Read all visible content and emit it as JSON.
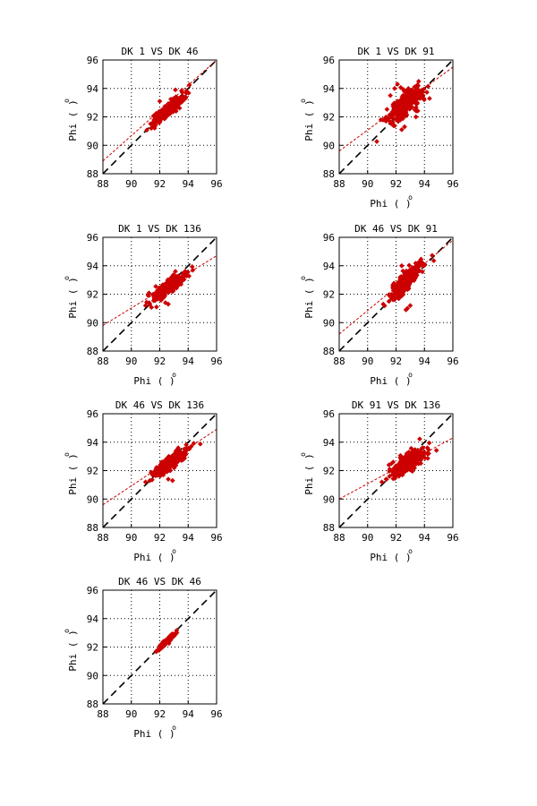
{
  "chart_data": [
    {
      "type": "scatter",
      "title": "DK  1 VS DK 46",
      "xlabel": "Phi ( )",
      "ylabel": "Phi ( )",
      "unit_superscript": "o",
      "show_xlabel": false,
      "xlim": [
        88,
        96
      ],
      "ylim": [
        88,
        96
      ],
      "xticks": [
        88,
        90,
        92,
        94,
        96
      ],
      "yticks": [
        88,
        90,
        92,
        94,
        96
      ],
      "grid": true,
      "identity_line": {
        "style": "black-dashed"
      },
      "fit_line": {
        "style": "red-dashed",
        "points": [
          [
            88,
            88.9
          ],
          [
            96,
            96.0
          ]
        ]
      },
      "cluster": {
        "center": [
          92.6,
          92.5
        ],
        "spread": [
          0.55,
          0.5
        ],
        "corr": 0.9,
        "n": 260,
        "color": "#cc0000"
      },
      "outliers": [
        [
          91.4,
          91.2
        ],
        [
          91.7,
          91.4
        ],
        [
          93.8,
          93.4
        ],
        [
          92.0,
          93.1
        ],
        [
          93.1,
          93.9
        ]
      ]
    },
    {
      "type": "scatter",
      "title": "DK  1 VS DK 91",
      "xlabel": "Phi ( )",
      "ylabel": "Phi ( )",
      "unit_superscript": "o",
      "show_xlabel": true,
      "xlim": [
        88,
        96
      ],
      "ylim": [
        88,
        96
      ],
      "xticks": [
        88,
        90,
        92,
        94,
        96
      ],
      "yticks": [
        88,
        90,
        92,
        94,
        96
      ],
      "grid": true,
      "identity_line": {
        "style": "black-dashed"
      },
      "fit_line": {
        "style": "red-dashed",
        "points": [
          [
            88,
            89.6
          ],
          [
            96,
            95.5
          ]
        ]
      },
      "cluster": {
        "center": [
          92.6,
          92.8
        ],
        "spread": [
          0.6,
          0.6
        ],
        "corr": 0.75,
        "n": 300,
        "color": "#cc0000"
      },
      "outliers": [
        [
          91.3,
          91.7
        ],
        [
          91.6,
          93.5
        ],
        [
          92.4,
          91.1
        ],
        [
          92.6,
          91.3
        ],
        [
          93.4,
          92.0
        ],
        [
          92.1,
          94.3
        ],
        [
          93.3,
          94.1
        ],
        [
          91.9,
          94.0
        ]
      ]
    },
    {
      "type": "scatter",
      "title": "DK  1 VS DK 136",
      "xlabel": "Phi ( )",
      "ylabel": "Phi ( )",
      "unit_superscript": "o",
      "show_xlabel": true,
      "xlim": [
        88,
        96
      ],
      "ylim": [
        88,
        96
      ],
      "xticks": [
        88,
        90,
        92,
        94,
        96
      ],
      "yticks": [
        88,
        90,
        92,
        94,
        96
      ],
      "grid": true,
      "identity_line": {
        "style": "black-dashed"
      },
      "fit_line": {
        "style": "red-dashed",
        "points": [
          [
            88,
            89.8
          ],
          [
            96,
            94.7
          ]
        ]
      },
      "cluster": {
        "center": [
          92.6,
          92.5
        ],
        "spread": [
          0.55,
          0.45
        ],
        "corr": 0.85,
        "n": 280,
        "color": "#cc0000"
      },
      "outliers": [
        [
          91.0,
          91.2
        ],
        [
          91.3,
          91.3
        ],
        [
          92.4,
          91.4
        ],
        [
          92.6,
          91.3
        ],
        [
          93.8,
          93.6
        ],
        [
          93.1,
          93.6
        ]
      ]
    },
    {
      "type": "scatter",
      "title": "DK 46 VS DK 91",
      "xlabel": "Phi ( )",
      "ylabel": "Phi ( )",
      "unit_superscript": "o",
      "show_xlabel": true,
      "xlim": [
        88,
        96
      ],
      "ylim": [
        88,
        96
      ],
      "xticks": [
        88,
        90,
        92,
        94,
        96
      ],
      "yticks": [
        88,
        90,
        92,
        94,
        96
      ],
      "grid": true,
      "identity_line": {
        "style": "black-dashed"
      },
      "fit_line": {
        "style": "red-dashed",
        "points": [
          [
            88,
            89.2
          ],
          [
            96,
            95.8
          ]
        ]
      },
      "cluster": {
        "center": [
          92.7,
          92.9
        ],
        "spread": [
          0.55,
          0.6
        ],
        "corr": 0.85,
        "n": 300,
        "color": "#cc0000"
      },
      "outliers": [
        [
          91.1,
          91.3
        ],
        [
          91.5,
          91.5
        ],
        [
          92.7,
          90.9
        ],
        [
          93.0,
          91.2
        ],
        [
          92.8,
          91.0
        ],
        [
          93.6,
          94.0
        ],
        [
          92.4,
          94.0
        ]
      ]
    },
    {
      "type": "scatter",
      "title": "DK 46 VS DK 136",
      "xlabel": "Phi ( )",
      "ylabel": "Phi ( )",
      "unit_superscript": "o",
      "show_xlabel": true,
      "xlim": [
        88,
        96
      ],
      "ylim": [
        88,
        96
      ],
      "xticks": [
        88,
        90,
        92,
        94,
        96
      ],
      "yticks": [
        88,
        90,
        92,
        94,
        96
      ],
      "grid": true,
      "identity_line": {
        "style": "black-dashed"
      },
      "fit_line": {
        "style": "red-dashed",
        "points": [
          [
            88,
            89.6
          ],
          [
            96,
            94.9
          ]
        ]
      },
      "cluster": {
        "center": [
          92.7,
          92.5
        ],
        "spread": [
          0.55,
          0.45
        ],
        "corr": 0.85,
        "n": 280,
        "color": "#cc0000"
      },
      "outliers": [
        [
          91.0,
          91.2
        ],
        [
          91.3,
          91.3
        ],
        [
          92.6,
          91.4
        ],
        [
          92.9,
          91.3
        ],
        [
          93.8,
          93.5
        ],
        [
          93.3,
          93.6
        ]
      ]
    },
    {
      "type": "scatter",
      "title": "DK 91 VS DK 136",
      "xlabel": "Phi ( )",
      "ylabel": "Phi ( )",
      "unit_superscript": "o",
      "show_xlabel": true,
      "xlim": [
        88,
        96
      ],
      "ylim": [
        88,
        96
      ],
      "xticks": [
        88,
        90,
        92,
        94,
        96
      ],
      "yticks": [
        88,
        90,
        92,
        94,
        96
      ],
      "grid": true,
      "identity_line": {
        "style": "black-dashed"
      },
      "fit_line": {
        "style": "red-dashed",
        "points": [
          [
            88,
            90.0
          ],
          [
            96,
            94.3
          ]
        ]
      },
      "cluster": {
        "center": [
          92.9,
          92.6
        ],
        "spread": [
          0.6,
          0.45
        ],
        "corr": 0.75,
        "n": 300,
        "color": "#cc0000"
      },
      "outliers": [
        [
          91.0,
          91.2
        ],
        [
          91.3,
          91.4
        ],
        [
          91.5,
          92.4
        ],
        [
          91.8,
          92.6
        ],
        [
          94.3,
          93.2
        ],
        [
          93.9,
          93.6
        ],
        [
          92.2,
          91.6
        ]
      ]
    },
    {
      "type": "scatter",
      "title": "DK 46 VS DK 46",
      "xlabel": "Phi ( )",
      "ylabel": "Phi ( )",
      "unit_superscript": "o",
      "show_xlabel": true,
      "xlim": [
        88,
        96
      ],
      "ylim": [
        88,
        96
      ],
      "xticks": [
        88,
        90,
        92,
        94,
        96
      ],
      "yticks": [
        88,
        90,
        92,
        94,
        96
      ],
      "grid": true,
      "identity_line": {
        "style": "black-dashed"
      },
      "fit_line": null,
      "cluster": {
        "center": [
          92.5,
          92.4
        ],
        "spread": [
          0.3,
          0.3
        ],
        "corr": 0.95,
        "n": 160,
        "color": "#cc0000"
      },
      "outliers": [
        [
          92.0,
          91.9
        ],
        [
          93.1,
          92.9
        ]
      ]
    }
  ]
}
